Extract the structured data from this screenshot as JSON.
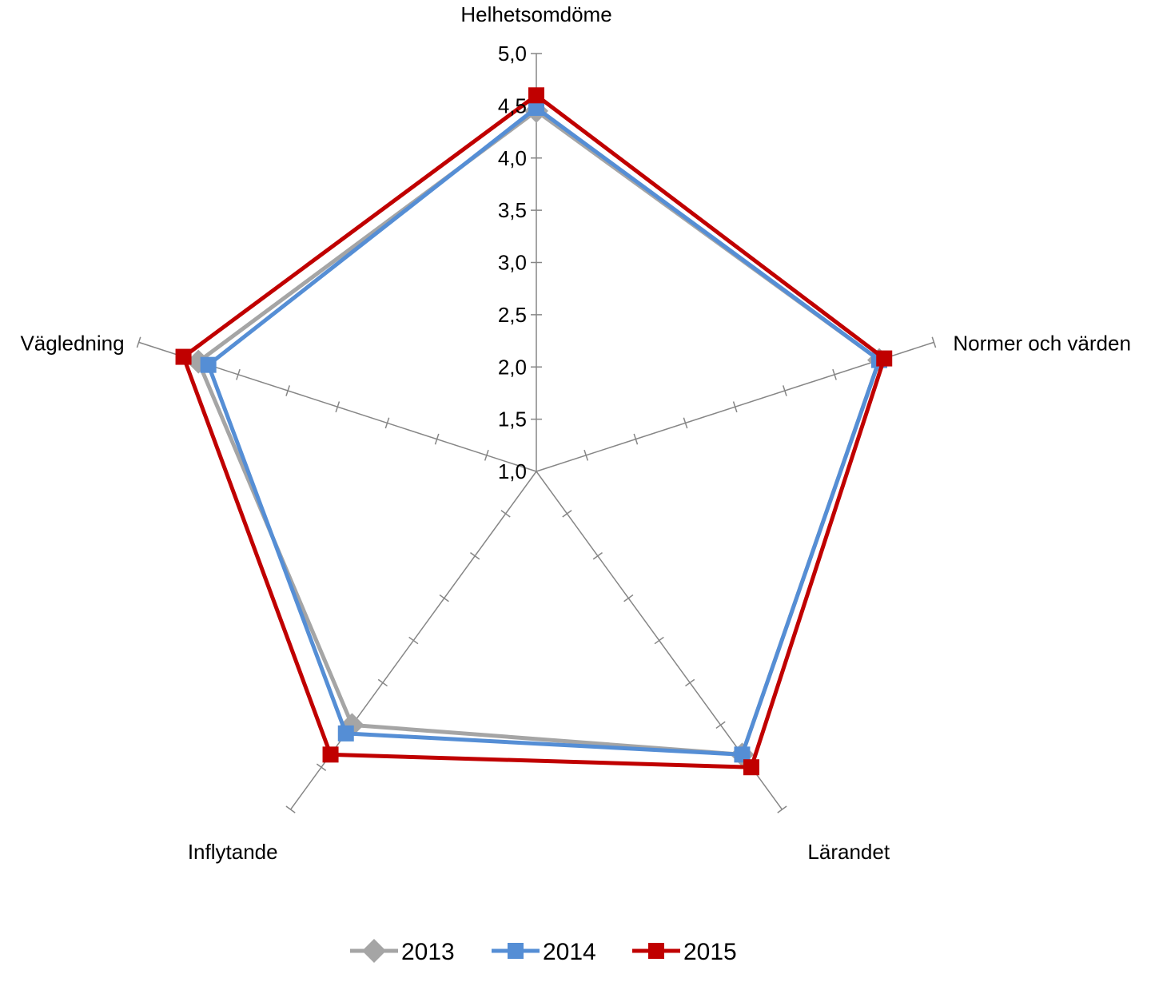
{
  "chart_data": {
    "type": "radar",
    "axes": [
      "Helhetsomdöme",
      "Normer och värden",
      "Lärandet",
      "Inflytande",
      "Vägledning"
    ],
    "rlim": [
      1.0,
      5.0
    ],
    "ticks": [
      "1,0",
      "1,5",
      "2,0",
      "2,5",
      "3,0",
      "3,5",
      "4,0",
      "4,5",
      "5,0"
    ],
    "tick_values": [
      1.0,
      1.5,
      2.0,
      2.5,
      3.0,
      3.5,
      4.0,
      4.5,
      5.0
    ],
    "legend_position": "bottom",
    "series": [
      {
        "name": "2013",
        "color": "#A5A5A5",
        "marker": "diamond",
        "values": [
          4.45,
          4.45,
          4.35,
          4.0,
          4.4
        ]
      },
      {
        "name": "2014",
        "color": "#558ED5",
        "marker": "square",
        "values": [
          4.48,
          4.45,
          4.35,
          4.1,
          4.3
        ]
      },
      {
        "name": "2015",
        "color": "#C00000",
        "marker": "square",
        "values": [
          4.6,
          4.5,
          4.5,
          4.35,
          4.55
        ]
      }
    ]
  }
}
